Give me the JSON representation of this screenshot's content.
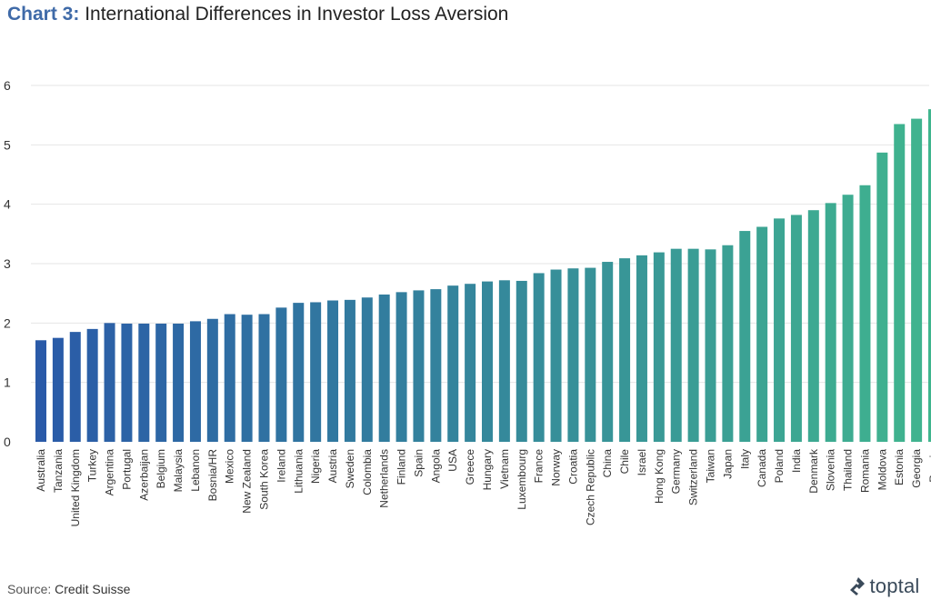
{
  "header": {
    "title_prefix": "Chart 3:",
    "title_text": "International Differences in Investor Loss Aversion"
  },
  "footer": {
    "source_label": "Source:",
    "source_value": "Credit Suisse",
    "logo_text": "toptal"
  },
  "chart_data": {
    "type": "bar",
    "title": "Chart 3: International Differences in Investor Loss Aversion",
    "xlabel": "",
    "ylabel": "",
    "ylim": [
      0,
      6
    ],
    "yticks": [
      0,
      1,
      2,
      3,
      4,
      5,
      6
    ],
    "grid": true,
    "colors": {
      "start": "#2a5aa8",
      "end": "#40b58e"
    },
    "categories": [
      "Australia",
      "Tanzania",
      "United Kingdom",
      "Turkey",
      "Argentina",
      "Portugal",
      "Azerbaijan",
      "Belgium",
      "Malaysia",
      "Lebanon",
      "Bosnia/HR",
      "Mexico",
      "New Zealand",
      "South Korea",
      "Ireland",
      "Lithuania",
      "Nigeria",
      "Austria",
      "Sweden",
      "Colombia",
      "Netherlands",
      "Finland",
      "Spain",
      "Angola",
      "USA",
      "Greece",
      "Hungary",
      "Vietnam",
      "Luxembourg",
      "France",
      "Norway",
      "Croatia",
      "Czech Republic",
      "China",
      "Chile",
      "Israel",
      "Hong Kong",
      "Germany",
      "Switzerland",
      "Taiwan",
      "Japan",
      "Italy",
      "Canada",
      "Poland",
      "India",
      "Denmark",
      "Slovenia",
      "Thailand",
      "Romania",
      "Moldova",
      "Estonia",
      "Georgia",
      "Russia"
    ],
    "values": [
      1.71,
      1.75,
      1.85,
      1.9,
      2.0,
      1.99,
      1.99,
      1.99,
      1.99,
      2.03,
      2.07,
      2.15,
      2.14,
      2.15,
      2.26,
      2.34,
      2.35,
      2.38,
      2.39,
      2.43,
      2.48,
      2.52,
      2.55,
      2.57,
      2.63,
      2.66,
      2.7,
      2.72,
      2.71,
      2.84,
      2.9,
      2.92,
      2.93,
      3.03,
      3.09,
      3.14,
      3.19,
      3.25,
      3.25,
      3.24,
      3.31,
      3.55,
      3.62,
      3.76,
      3.82,
      3.9,
      4.02,
      4.16,
      4.32,
      4.87,
      5.35,
      5.44,
      5.6
    ]
  }
}
